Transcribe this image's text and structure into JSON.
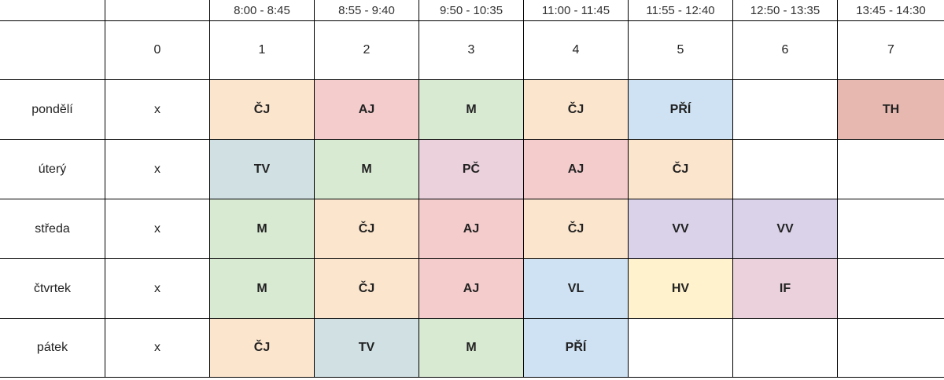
{
  "colors": {
    "cj": "#fce5cd",
    "aj": "#f4cccc",
    "m": "#d9ead3",
    "pri": "#cfe2f3",
    "tv": "#d0e0e3",
    "pc": "#ead1dc",
    "vv": "#d9d2e9",
    "vl": "#cfe2f3",
    "hv": "#fff2cc",
    "if": "#ead1dc",
    "th": "#e6b8af"
  },
  "header": {
    "times": [
      "8:00 - 8:45",
      "8:55 - 9:40",
      "9:50 - 10:35",
      "11:00 - 11:45",
      "11:55 - 12:40",
      "12:50 - 13:35",
      "13:45 - 14:30"
    ],
    "numbers": [
      "0",
      "1",
      "2",
      "3",
      "4",
      "5",
      "6",
      "7"
    ]
  },
  "days": [
    {
      "label": "pondělí",
      "zero": "x",
      "lessons": [
        {
          "subject": "ČJ",
          "color": "#fce5cd"
        },
        {
          "subject": "AJ",
          "color": "#f4cccc"
        },
        {
          "subject": "M",
          "color": "#d9ead3"
        },
        {
          "subject": "ČJ",
          "color": "#fce5cd"
        },
        {
          "subject": "PŘÍ",
          "color": "#cfe2f3"
        },
        {
          "subject": "",
          "color": "#ffffff"
        },
        {
          "subject": "TH",
          "color": "#e6b8af"
        }
      ]
    },
    {
      "label": "úterý",
      "zero": "x",
      "lessons": [
        {
          "subject": "TV",
          "color": "#d0e0e3"
        },
        {
          "subject": "M",
          "color": "#d9ead3"
        },
        {
          "subject": "PČ",
          "color": "#ead1dc"
        },
        {
          "subject": "AJ",
          "color": "#f4cccc"
        },
        {
          "subject": "ČJ",
          "color": "#fce5cd"
        },
        {
          "subject": "",
          "color": "#ffffff"
        },
        {
          "subject": "",
          "color": "#ffffff"
        }
      ]
    },
    {
      "label": "středa",
      "zero": "x",
      "lessons": [
        {
          "subject": "M",
          "color": "#d9ead3"
        },
        {
          "subject": "ČJ",
          "color": "#fce5cd"
        },
        {
          "subject": "AJ",
          "color": "#f4cccc"
        },
        {
          "subject": "ČJ",
          "color": "#fce5cd"
        },
        {
          "subject": "VV",
          "color": "#d9d2e9"
        },
        {
          "subject": "VV",
          "color": "#d9d2e9"
        },
        {
          "subject": "",
          "color": "#ffffff"
        }
      ]
    },
    {
      "label": "čtvrtek",
      "zero": "x",
      "lessons": [
        {
          "subject": "M",
          "color": "#d9ead3"
        },
        {
          "subject": "ČJ",
          "color": "#fce5cd"
        },
        {
          "subject": "AJ",
          "color": "#f4cccc"
        },
        {
          "subject": "VL",
          "color": "#cfe2f3"
        },
        {
          "subject": "HV",
          "color": "#fff2cc"
        },
        {
          "subject": "IF",
          "color": "#ead1dc"
        },
        {
          "subject": "",
          "color": "#ffffff"
        }
      ]
    },
    {
      "label": "pátek",
      "zero": "x",
      "lessons": [
        {
          "subject": "ČJ",
          "color": "#fce5cd"
        },
        {
          "subject": "TV",
          "color": "#d0e0e3"
        },
        {
          "subject": "M",
          "color": "#d9ead3"
        },
        {
          "subject": "PŘÍ",
          "color": "#cfe2f3"
        },
        {
          "subject": "",
          "color": "#ffffff"
        },
        {
          "subject": "",
          "color": "#ffffff"
        },
        {
          "subject": "",
          "color": "#ffffff"
        }
      ]
    }
  ]
}
